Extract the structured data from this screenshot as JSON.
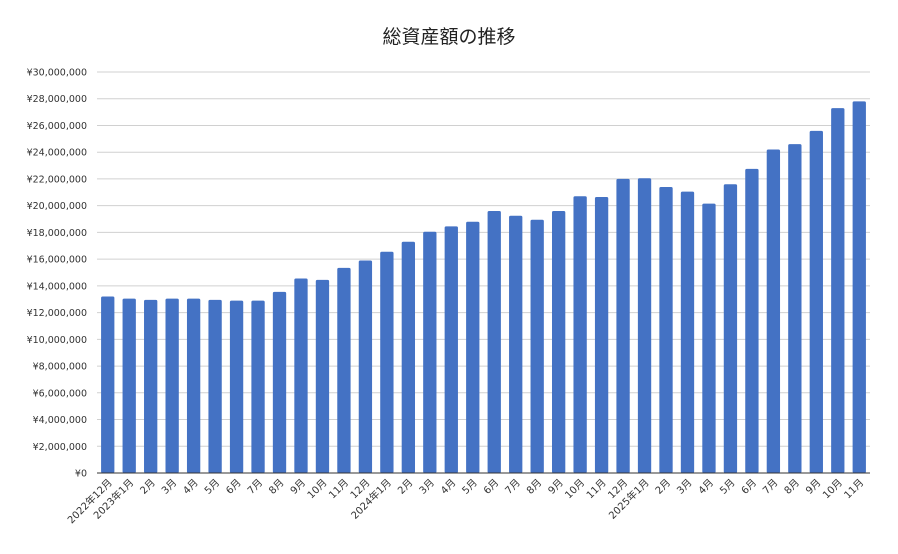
{
  "chart_data": {
    "type": "bar",
    "title": "総資産額の推移",
    "xlabel": "",
    "ylabel": "",
    "ylim": [
      0,
      30000000
    ],
    "yticks": [
      0,
      2000000,
      4000000,
      6000000,
      8000000,
      10000000,
      12000000,
      14000000,
      16000000,
      18000000,
      20000000,
      22000000,
      24000000,
      26000000,
      28000000,
      30000000
    ],
    "ytick_labels": [
      "¥0",
      "¥2,000,000",
      "¥4,000,000",
      "¥6,000,000",
      "¥8,000,000",
      "¥10,000,000",
      "¥12,000,000",
      "¥14,000,000",
      "¥16,000,000",
      "¥18,000,000",
      "¥20,000,000",
      "¥22,000,000",
      "¥24,000,000",
      "¥26,000,000",
      "¥28,000,000",
      "¥30,000,000"
    ],
    "grid": true,
    "legend": "none",
    "bar_color": "#4472c4",
    "categories": [
      "2022年12月",
      "2023年1月",
      "2月",
      "3月",
      "4月",
      "5月",
      "6月",
      "7月",
      "8月",
      "9月",
      "10月",
      "11月",
      "12月",
      "2024年1月",
      "2月",
      "3月",
      "4月",
      "5月",
      "6月",
      "7月",
      "8月",
      "9月",
      "10月",
      "11月",
      "12月",
      "2025年1月",
      "2月",
      "3月",
      "4月",
      "5月",
      "6月",
      "7月",
      "8月",
      "9月",
      "10月",
      "11月"
    ],
    "values": [
      13200000,
      13050000,
      12950000,
      13050000,
      13050000,
      12950000,
      12900000,
      12900000,
      13550000,
      14550000,
      14450000,
      15350000,
      15900000,
      16550000,
      17300000,
      18050000,
      18450000,
      18800000,
      19600000,
      19250000,
      18950000,
      19600000,
      20700000,
      20650000,
      22000000,
      22050000,
      21400000,
      21050000,
      20150000,
      21600000,
      22750000,
      24200000,
      24600000,
      25600000,
      27300000,
      27800000
    ]
  }
}
